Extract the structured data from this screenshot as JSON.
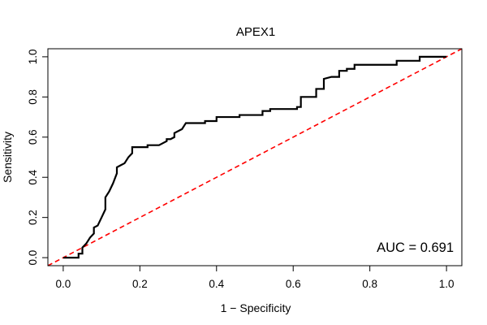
{
  "chart_data": {
    "type": "line",
    "title": "APEX1",
    "xlabel": "1 − Specificity",
    "ylabel": "Sensitivity",
    "xlim": [
      -0.04,
      1.04
    ],
    "ylim": [
      -0.04,
      1.04
    ],
    "x_ticks": [
      "0.0",
      "0.2",
      "0.4",
      "0.6",
      "0.8",
      "1.0"
    ],
    "x_tick_values": [
      0,
      0.2,
      0.4,
      0.6,
      0.8,
      1.0
    ],
    "y_ticks": [
      "0.0",
      "0.2",
      "0.4",
      "0.6",
      "0.8",
      "1.0"
    ],
    "y_tick_values": [
      0,
      0.2,
      0.4,
      0.6,
      0.8,
      1.0
    ],
    "annotation": "AUC = 0.691",
    "grid": false,
    "legend": "none",
    "series": [
      {
        "name": "ROC curve",
        "color": "#000000",
        "x": [
          0.0,
          0.04,
          0.04,
          0.05,
          0.05,
          0.06,
          0.07,
          0.08,
          0.08,
          0.09,
          0.1,
          0.11,
          0.11,
          0.12,
          0.13,
          0.14,
          0.14,
          0.15,
          0.16,
          0.17,
          0.18,
          0.18,
          0.22,
          0.22,
          0.25,
          0.27,
          0.27,
          0.28,
          0.29,
          0.29,
          0.31,
          0.32,
          0.37,
          0.37,
          0.4,
          0.4,
          0.46,
          0.46,
          0.52,
          0.52,
          0.54,
          0.54,
          0.61,
          0.61,
          0.62,
          0.62,
          0.66,
          0.66,
          0.68,
          0.68,
          0.7,
          0.72,
          0.72,
          0.74,
          0.74,
          0.76,
          0.76,
          0.85,
          0.87,
          0.87,
          0.91,
          0.93,
          0.93,
          1.0
        ],
        "y": [
          0.0,
          0.0,
          0.02,
          0.02,
          0.05,
          0.07,
          0.1,
          0.12,
          0.15,
          0.16,
          0.2,
          0.24,
          0.3,
          0.33,
          0.37,
          0.42,
          0.45,
          0.46,
          0.47,
          0.5,
          0.52,
          0.55,
          0.55,
          0.56,
          0.56,
          0.58,
          0.59,
          0.59,
          0.6,
          0.62,
          0.64,
          0.67,
          0.67,
          0.68,
          0.68,
          0.7,
          0.7,
          0.71,
          0.71,
          0.73,
          0.73,
          0.74,
          0.74,
          0.75,
          0.75,
          0.8,
          0.8,
          0.84,
          0.84,
          0.89,
          0.9,
          0.9,
          0.93,
          0.93,
          0.94,
          0.94,
          0.96,
          0.96,
          0.96,
          0.98,
          0.98,
          0.98,
          1.0,
          1.0
        ]
      },
      {
        "name": "Reference line",
        "color": "#ff0000",
        "style": "dashed",
        "x": [
          -0.04,
          1.04
        ],
        "y": [
          -0.04,
          1.04
        ]
      }
    ]
  }
}
